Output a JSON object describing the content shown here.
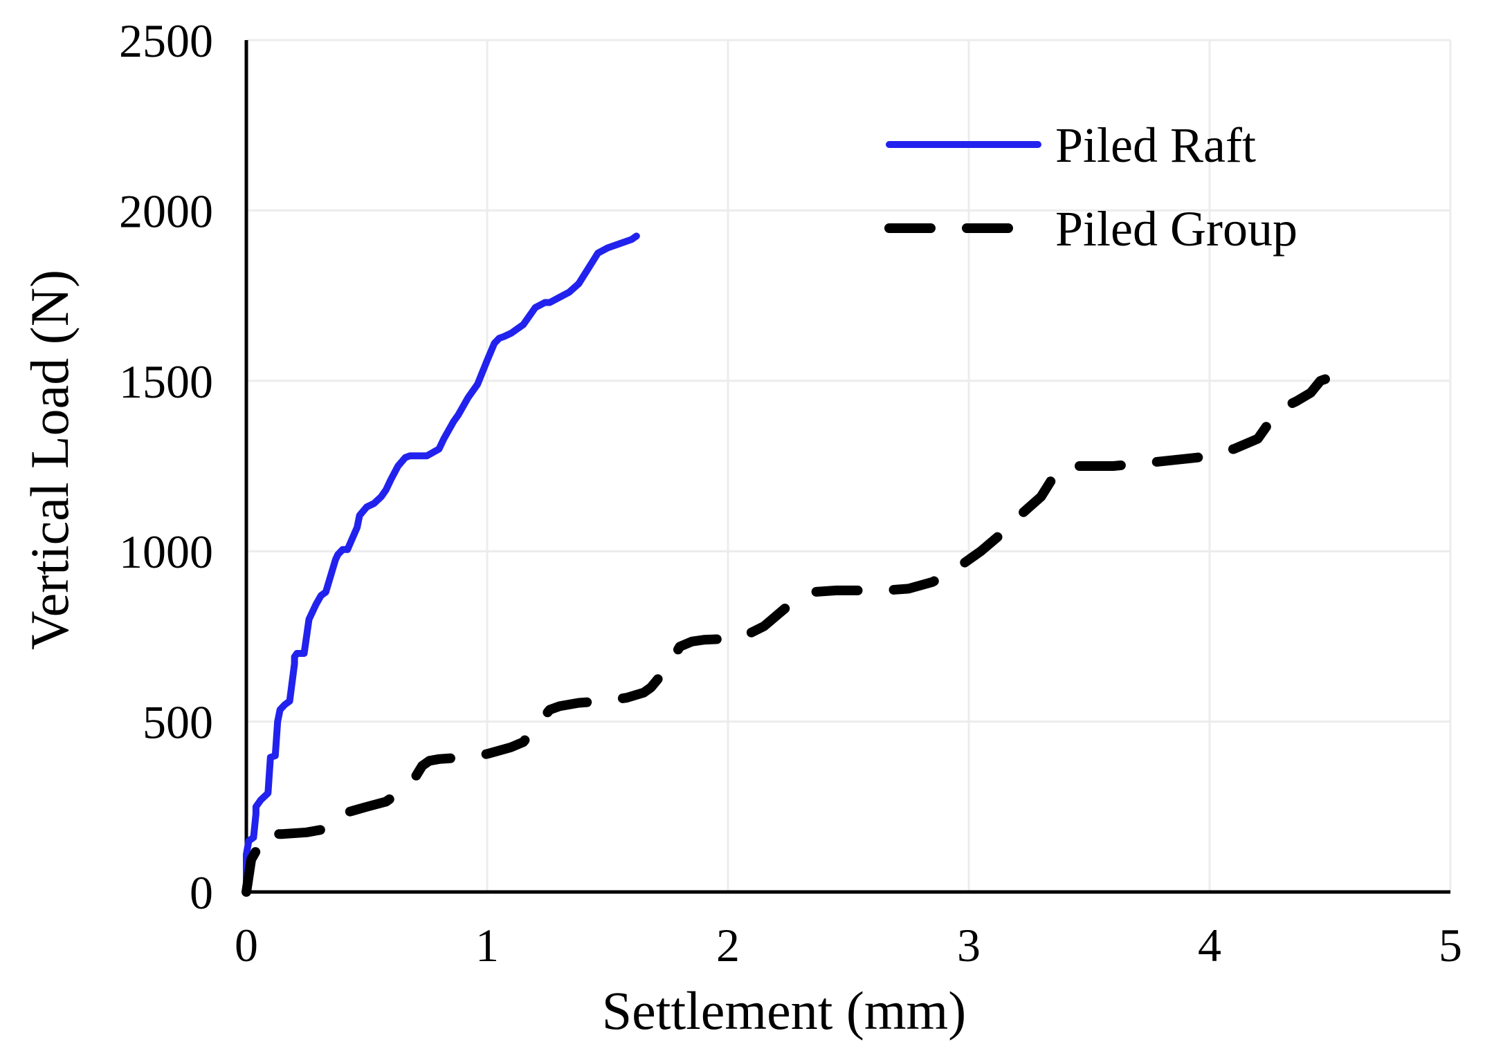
{
  "chart_data": {
    "type": "line",
    "title": "",
    "xlabel": "Settlement (mm)",
    "ylabel": "Vertical Load (N)",
    "xlim": [
      0,
      5
    ],
    "ylim": [
      0,
      2500
    ],
    "xticks": [
      0,
      1,
      2,
      3,
      4,
      5
    ],
    "yticks": [
      0,
      500,
      1000,
      1500,
      2000,
      2500
    ],
    "xtick_labels": [
      "0",
      "1",
      "2",
      "3",
      "4",
      "5"
    ],
    "ytick_labels": [
      "0",
      "500",
      "1000",
      "1500",
      "2000",
      "2500"
    ],
    "grid": true,
    "legend_position": "top-right",
    "series": [
      {
        "name": "Piled Raft",
        "color": "#2222ee",
        "style": "solid",
        "x": [
          0.0,
          0.0,
          0.01,
          0.03,
          0.04,
          0.04,
          0.06,
          0.09,
          0.1,
          0.12,
          0.13,
          0.14,
          0.16,
          0.18,
          0.2,
          0.2,
          0.21,
          0.24,
          0.26,
          0.28,
          0.29,
          0.31,
          0.33,
          0.37,
          0.38,
          0.4,
          0.42,
          0.46,
          0.47,
          0.5,
          0.53,
          0.56,
          0.58,
          0.6,
          0.63,
          0.66,
          0.68,
          0.7,
          0.75,
          0.8,
          0.82,
          0.86,
          0.88,
          0.9,
          0.92,
          0.96,
          1.0,
          1.03,
          1.05,
          1.07,
          1.1,
          1.15,
          1.2,
          1.24,
          1.26,
          1.3,
          1.34,
          1.38,
          1.42,
          1.46,
          1.5,
          1.52,
          1.56,
          1.6,
          1.62
        ],
        "y": [
          0,
          110,
          150,
          160,
          230,
          250,
          270,
          290,
          395,
          400,
          500,
          535,
          550,
          560,
          670,
          690,
          700,
          700,
          800,
          830,
          845,
          870,
          880,
          975,
          990,
          1005,
          1005,
          1070,
          1105,
          1130,
          1140,
          1160,
          1180,
          1210,
          1250,
          1275,
          1280,
          1280,
          1280,
          1300,
          1330,
          1380,
          1400,
          1425,
          1450,
          1490,
          1560,
          1610,
          1625,
          1630,
          1640,
          1665,
          1715,
          1730,
          1730,
          1745,
          1760,
          1785,
          1830,
          1875,
          1890,
          1895,
          1905,
          1915,
          1925
        ]
      },
      {
        "name": "Piled Group",
        "color": "#000000",
        "style": "dashed",
        "x": [
          0.0,
          0.02,
          0.04,
          0.05,
          0.1,
          0.15,
          0.25,
          0.33,
          0.4,
          0.5,
          0.58,
          0.65,
          0.7,
          0.73,
          0.76,
          0.8,
          0.9,
          1.0,
          1.05,
          1.1,
          1.15,
          1.22,
          1.26,
          1.3,
          1.38,
          1.48,
          1.58,
          1.65,
          1.68,
          1.75,
          1.8,
          1.85,
          1.9,
          2.05,
          2.15,
          2.25,
          2.35,
          2.45,
          2.55,
          2.65,
          2.75,
          2.85,
          2.95,
          3.05,
          3.15,
          3.22,
          3.3,
          3.34,
          3.38,
          3.45,
          3.6,
          3.75,
          3.95,
          4.1,
          4.2,
          4.25,
          4.3,
          4.36,
          4.42,
          4.46,
          4.5
        ],
        "y": [
          0,
          95,
          120,
          160,
          170,
          170,
          175,
          185,
          230,
          250,
          265,
          300,
          335,
          370,
          385,
          390,
          395,
          405,
          415,
          425,
          440,
          500,
          535,
          545,
          555,
          560,
          570,
          585,
          600,
          660,
          720,
          735,
          740,
          745,
          780,
          840,
          880,
          885,
          885,
          885,
          890,
          910,
          950,
          1000,
          1060,
          1110,
          1160,
          1205,
          1245,
          1250,
          1250,
          1260,
          1275,
          1300,
          1330,
          1380,
          1420,
          1440,
          1465,
          1500,
          1510
        ]
      }
    ]
  }
}
